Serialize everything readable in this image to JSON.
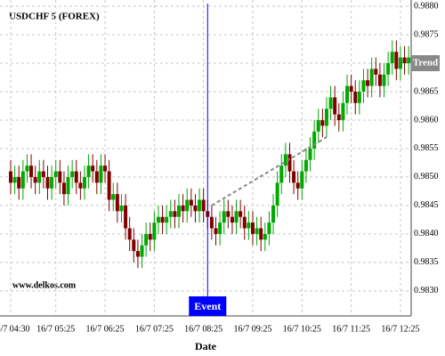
{
  "chart_data": {
    "type": "candlestick",
    "title": "USDCHF 5 (FOREX)",
    "watermark": "www.delkos.com",
    "x_label": "Date",
    "categories": [
      "16/7 04:30",
      null,
      null,
      null,
      null,
      null,
      null,
      null,
      null,
      null,
      null,
      "16/7 05:25",
      null,
      null,
      null,
      null,
      null,
      null,
      null,
      null,
      null,
      null,
      null,
      "16/7 06:25",
      null,
      null,
      null,
      null,
      null,
      null,
      null,
      null,
      null,
      null,
      null,
      "16/7 07:25",
      null,
      null,
      null,
      null,
      null,
      null,
      null,
      null,
      null,
      null,
      null,
      "16/7 08:25",
      null,
      null,
      null,
      null,
      null,
      null,
      null,
      null,
      null,
      null,
      null,
      "16/7 09:25",
      null,
      null,
      null,
      null,
      null,
      null,
      null,
      null,
      null,
      null,
      null,
      "16/7 10:25",
      null,
      null,
      null,
      null,
      null,
      null,
      null,
      null,
      null,
      null,
      null,
      "16/7 11:25",
      null,
      null,
      null,
      null,
      null,
      null,
      null,
      null,
      null,
      null,
      null,
      "16/7 12:25",
      null,
      null
    ],
    "open": [
      0.9851,
      0.9849,
      0.985,
      0.9848,
      0.9851,
      0.9852,
      0.985,
      0.9849,
      0.9851,
      0.985,
      0.9848,
      0.985,
      0.9851,
      0.9849,
      0.9847,
      0.985,
      0.9851,
      0.9849,
      0.9848,
      0.985,
      0.9852,
      0.9851,
      0.9849,
      0.9852,
      0.9851,
      0.9846,
      0.9847,
      0.9844,
      0.9845,
      0.9841,
      0.9839,
      0.9837,
      0.9836,
      0.9838,
      0.984,
      0.9839,
      0.9842,
      0.9843,
      0.9842,
      0.9843,
      0.9844,
      0.9843,
      0.9845,
      0.9844,
      0.9846,
      0.9845,
      0.9844,
      0.9846,
      0.9844,
      0.9843,
      0.9841,
      0.984,
      0.9842,
      0.9844,
      0.9843,
      0.9842,
      0.9844,
      0.9843,
      0.9841,
      0.9842,
      0.984,
      0.9841,
      0.9839,
      0.984,
      0.9842,
      0.9845,
      0.9849,
      0.9852,
      0.9854,
      0.9851,
      0.9849,
      0.9848,
      0.9851,
      0.9853,
      0.9855,
      0.9858,
      0.986,
      0.9859,
      0.9862,
      0.9864,
      0.9861,
      0.986,
      0.9863,
      0.9866,
      0.9865,
      0.9863,
      0.9865,
      0.9867,
      0.9866,
      0.9869,
      0.9868,
      0.9866,
      0.9868,
      0.987,
      0.9872,
      0.9869,
      0.9871,
      0.987
    ],
    "high": [
      0.9853,
      0.9852,
      0.9852,
      0.9853,
      0.9854,
      0.9854,
      0.9852,
      0.9853,
      0.9853,
      0.9852,
      0.9852,
      0.9853,
      0.9853,
      0.9851,
      0.9852,
      0.9853,
      0.9853,
      0.9851,
      0.9852,
      0.9854,
      0.9854,
      0.9853,
      0.9854,
      0.9854,
      0.9853,
      0.9849,
      0.9849,
      0.9847,
      0.9847,
      0.9843,
      0.9841,
      0.9839,
      0.984,
      0.9842,
      0.9842,
      0.9844,
      0.9845,
      0.9845,
      0.9845,
      0.9846,
      0.9846,
      0.9847,
      0.9847,
      0.9848,
      0.9848,
      0.9847,
      0.9848,
      0.9848,
      0.9846,
      0.9845,
      0.9843,
      0.9844,
      0.9846,
      0.9846,
      0.9845,
      0.9846,
      0.9846,
      0.9845,
      0.9844,
      0.9844,
      0.9843,
      0.9843,
      0.9842,
      0.9844,
      0.9847,
      0.9851,
      0.9854,
      0.9856,
      0.9856,
      0.9853,
      0.9851,
      0.9853,
      0.9855,
      0.9857,
      0.986,
      0.9862,
      0.9862,
      0.9864,
      0.9866,
      0.9866,
      0.9863,
      0.9865,
      0.9868,
      0.9868,
      0.9867,
      0.9867,
      0.9869,
      0.9869,
      0.9871,
      0.9871,
      0.987,
      0.987,
      0.9872,
      0.9874,
      0.9874,
      0.9873,
      0.9873,
      0.9873
    ],
    "low": [
      0.9847,
      0.9847,
      0.9846,
      0.9846,
      0.9849,
      0.9848,
      0.9847,
      0.9847,
      0.9848,
      0.9846,
      0.9846,
      0.9848,
      0.9847,
      0.9845,
      0.9845,
      0.9848,
      0.9847,
      0.9846,
      0.9846,
      0.9848,
      0.9849,
      0.9847,
      0.9847,
      0.9849,
      0.9844,
      0.9844,
      0.9842,
      0.9842,
      0.9839,
      0.9837,
      0.9835,
      0.9834,
      0.9834,
      0.9836,
      0.9837,
      0.9837,
      0.984,
      0.984,
      0.984,
      0.9841,
      0.9841,
      0.9841,
      0.9842,
      0.9842,
      0.9843,
      0.9842,
      0.9842,
      0.9842,
      0.9841,
      0.9839,
      0.9838,
      0.9838,
      0.984,
      0.9841,
      0.984,
      0.984,
      0.9841,
      0.9839,
      0.9839,
      0.9838,
      0.9838,
      0.9837,
      0.9837,
      0.9838,
      0.984,
      0.9843,
      0.9847,
      0.985,
      0.9849,
      0.9847,
      0.9846,
      0.9846,
      0.9849,
      0.9851,
      0.9853,
      0.9856,
      0.9857,
      0.9857,
      0.986,
      0.9859,
      0.9858,
      0.9858,
      0.9861,
      0.9863,
      0.9861,
      0.9861,
      0.9863,
      0.9864,
      0.9864,
      0.9866,
      0.9864,
      0.9864,
      0.9866,
      0.9868,
      0.9867,
      0.9867,
      0.9868,
      0.9868
    ],
    "close": [
      0.9849,
      0.985,
      0.9848,
      0.9851,
      0.9852,
      0.985,
      0.9849,
      0.9851,
      0.985,
      0.9848,
      0.985,
      0.9851,
      0.9849,
      0.9847,
      0.985,
      0.9851,
      0.9849,
      0.9848,
      0.985,
      0.9852,
      0.9851,
      0.9849,
      0.9852,
      0.9851,
      0.9846,
      0.9847,
      0.9844,
      0.9845,
      0.9841,
      0.9839,
      0.9837,
      0.9836,
      0.9838,
      0.984,
      0.9839,
      0.9842,
      0.9843,
      0.9842,
      0.9843,
      0.9844,
      0.9843,
      0.9845,
      0.9844,
      0.9846,
      0.9845,
      0.9844,
      0.9846,
      0.9844,
      0.9843,
      0.9841,
      0.984,
      0.9842,
      0.9844,
      0.9843,
      0.9842,
      0.9844,
      0.9843,
      0.9841,
      0.9842,
      0.984,
      0.9841,
      0.9839,
      0.984,
      0.9842,
      0.9845,
      0.9849,
      0.9852,
      0.9854,
      0.9851,
      0.9849,
      0.9848,
      0.9851,
      0.9853,
      0.9855,
      0.9858,
      0.986,
      0.9859,
      0.9862,
      0.9864,
      0.9861,
      0.986,
      0.9863,
      0.9866,
      0.9865,
      0.9863,
      0.9865,
      0.9867,
      0.9866,
      0.9869,
      0.9868,
      0.9866,
      0.9868,
      0.987,
      0.9872,
      0.9869,
      0.9871,
      0.987,
      0.9871
    ],
    "up_color": "#00a800",
    "down_color": "#800000",
    "ylim": [
      0.98256,
      0.98811
    ],
    "yticks": [
      {
        "value": 0.983,
        "label": "0.9830"
      },
      {
        "value": 0.9835,
        "label": "0.9835"
      },
      {
        "value": 0.984,
        "label": "0.9840"
      },
      {
        "value": 0.9845,
        "label": "0.9845"
      },
      {
        "value": 0.985,
        "label": "0.9850"
      },
      {
        "value": 0.9855,
        "label": "0.9855"
      },
      {
        "value": 0.986,
        "label": "0.9860"
      },
      {
        "value": 0.9865,
        "label": "0.9865"
      },
      {
        "value": 0.987,
        "label": "0.9870"
      },
      {
        "value": 0.9875,
        "label": "0.9875"
      },
      {
        "value": 0.988,
        "label": "0.9880"
      }
    ],
    "grid": true,
    "event": {
      "label": "Event",
      "x": 48,
      "color": "#0000ff"
    },
    "trend": {
      "label": "Trend",
      "start": [
        49,
        0.9845
      ],
      "end": [
        77,
        0.9857
      ],
      "value": 0.987,
      "color": "#888888"
    }
  }
}
